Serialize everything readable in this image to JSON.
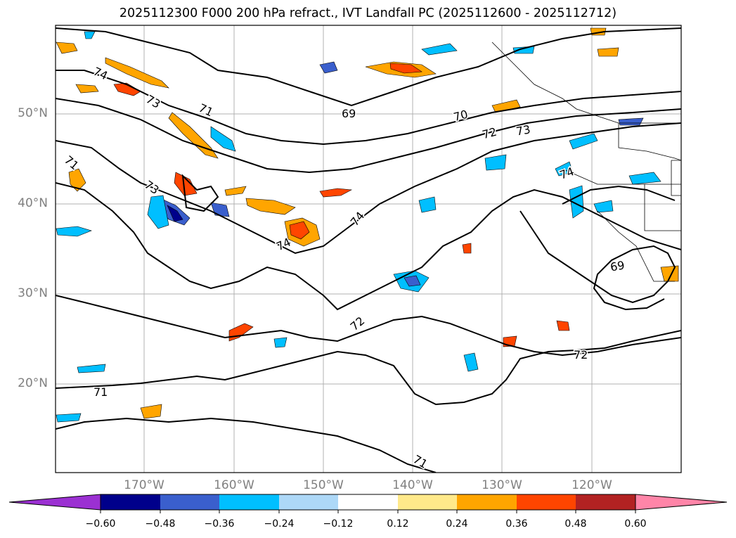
{
  "title": "2025112300 F000 200 hPa refract., IVT Landfall PC (2025112600 - 2025112712)",
  "map": {
    "lat_labels": [
      "50°N",
      "40°N",
      "30°N",
      "20°N"
    ],
    "lon_labels": [
      "170°W",
      "160°W",
      "150°W",
      "140°W",
      "130°W",
      "120°W"
    ],
    "contour_labels": [
      "74",
      "73",
      "71",
      "69",
      "70",
      "72",
      "73",
      "74",
      "71",
      "73",
      "74",
      "74",
      "72",
      "69",
      "72",
      "71",
      "71"
    ],
    "gridlines": true
  },
  "colorbar": {
    "ticks": [
      "−0.60",
      "−0.48",
      "−0.36",
      "−0.24",
      "−0.12",
      "0.12",
      "0.24",
      "0.36",
      "0.48",
      "0.60"
    ],
    "colors": [
      "#9b30d2",
      "#00008b",
      "#3a5fcd",
      "#00bfff",
      "#add8f7",
      "#ffffff",
      "#ffe98a",
      "#ffa500",
      "#ff4500",
      "#b22222",
      "#ff85a8"
    ],
    "extend": "both"
  }
}
